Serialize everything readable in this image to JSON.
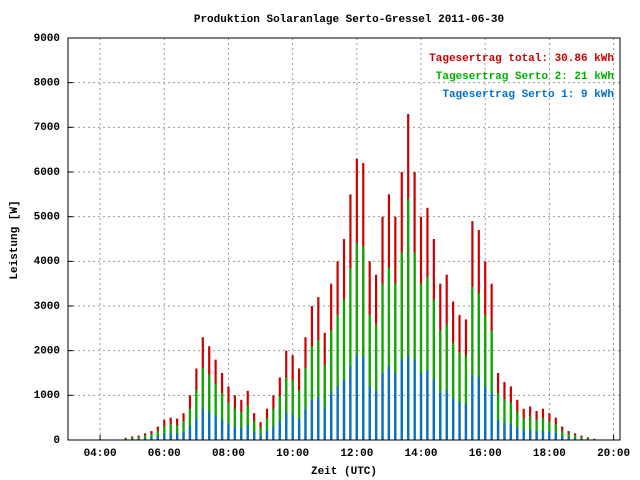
{
  "chart_data": {
    "type": "bar",
    "title": "Produktion Solaranlage Serto-Gressel 2011-06-30",
    "xlabel": "Zeit (UTC)",
    "ylabel": "Leistung [W]",
    "x": [
      4.8,
      5.0,
      5.2,
      5.4,
      5.6,
      5.8,
      6.0,
      6.2,
      6.4,
      6.6,
      6.8,
      7.0,
      7.2,
      7.4,
      7.6,
      7.8,
      8.0,
      8.2,
      8.4,
      8.6,
      8.8,
      9.0,
      9.2,
      9.4,
      9.6,
      9.8,
      10.0,
      10.2,
      10.4,
      10.6,
      10.8,
      11.0,
      11.2,
      11.4,
      11.6,
      11.8,
      12.0,
      12.2,
      12.4,
      12.6,
      12.8,
      13.0,
      13.2,
      13.4,
      13.6,
      13.8,
      14.0,
      14.2,
      14.4,
      14.6,
      14.8,
      15.0,
      15.2,
      15.4,
      15.6,
      15.8,
      16.0,
      16.2,
      16.4,
      16.6,
      16.8,
      17.0,
      17.2,
      17.4,
      17.6,
      17.8,
      18.0,
      18.2,
      18.4,
      18.6,
      18.8,
      19.0,
      19.2,
      19.4
    ],
    "series": [
      {
        "name": "Tagesertrag total: 30.86 kWh",
        "color": "#cc0000",
        "values": [
          50,
          80,
          100,
          150,
          200,
          300,
          450,
          500,
          480,
          600,
          1000,
          1600,
          2300,
          2100,
          1800,
          1500,
          1200,
          1000,
          900,
          1100,
          600,
          400,
          700,
          1000,
          1400,
          2000,
          1900,
          1600,
          2300,
          3000,
          3200,
          2400,
          3500,
          4000,
          4500,
          5500,
          6300,
          6200,
          4000,
          3700,
          5000,
          5500,
          5000,
          6000,
          7300,
          6000,
          5000,
          5200,
          4500,
          3500,
          3700,
          3100,
          2800,
          2700,
          4900,
          4700,
          4000,
          3500,
          1500,
          1300,
          1200,
          900,
          700,
          750,
          650,
          700,
          600,
          500,
          300,
          200,
          150,
          100,
          60,
          30
        ]
      },
      {
        "name": "Tagesertrag Serto 2: 21 kWh",
        "color": "#00b000",
        "values": [
          35,
          55,
          70,
          105,
          140,
          210,
          315,
          350,
          335,
          420,
          700,
          1120,
          1610,
          1470,
          1260,
          1050,
          840,
          700,
          630,
          770,
          420,
          280,
          490,
          700,
          980,
          1400,
          1330,
          1120,
          1610,
          2100,
          2240,
          1680,
          2450,
          2800,
          3150,
          3850,
          4410,
          4340,
          2800,
          2590,
          3500,
          3850,
          3500,
          4200,
          5400,
          4200,
          3500,
          3640,
          3150,
          2450,
          2590,
          2170,
          1960,
          1890,
          3430,
          3290,
          2800,
          2450,
          1050,
          910,
          840,
          630,
          490,
          525,
          455,
          490,
          420,
          350,
          210,
          140,
          105,
          70,
          42,
          21
        ]
      },
      {
        "name": "Tagesertrag Serto 1: 9 kWh",
        "color": "#0070d0",
        "values": [
          15,
          25,
          30,
          45,
          60,
          90,
          135,
          150,
          145,
          180,
          300,
          480,
          690,
          630,
          540,
          450,
          360,
          300,
          270,
          330,
          180,
          120,
          210,
          300,
          420,
          600,
          570,
          480,
          690,
          900,
          960,
          720,
          1050,
          1200,
          1350,
          1650,
          1890,
          1860,
          1200,
          1110,
          1500,
          1650,
          1500,
          1800,
          1900,
          1800,
          1500,
          1560,
          1350,
          1050,
          1110,
          930,
          840,
          810,
          1470,
          1410,
          1200,
          1050,
          450,
          390,
          360,
          270,
          210,
          225,
          195,
          210,
          180,
          150,
          90,
          60,
          45,
          30,
          18,
          9
        ]
      }
    ],
    "xlim": [
      3,
      20.2
    ],
    "xticks": [
      {
        "value": 4,
        "label": "04:00"
      },
      {
        "value": 6,
        "label": "06:00"
      },
      {
        "value": 8,
        "label": "08:00"
      },
      {
        "value": 10,
        "label": "10:00"
      },
      {
        "value": 12,
        "label": "12:00"
      },
      {
        "value": 14,
        "label": "14:00"
      },
      {
        "value": 16,
        "label": "16:00"
      },
      {
        "value": 18,
        "label": "18:00"
      },
      {
        "value": 20,
        "label": "20:00"
      }
    ],
    "ylim": [
      0,
      9000
    ],
    "yticks": [
      0,
      1000,
      2000,
      3000,
      4000,
      5000,
      6000,
      7000,
      8000,
      9000
    ],
    "grid": true,
    "legend": "upper right"
  }
}
